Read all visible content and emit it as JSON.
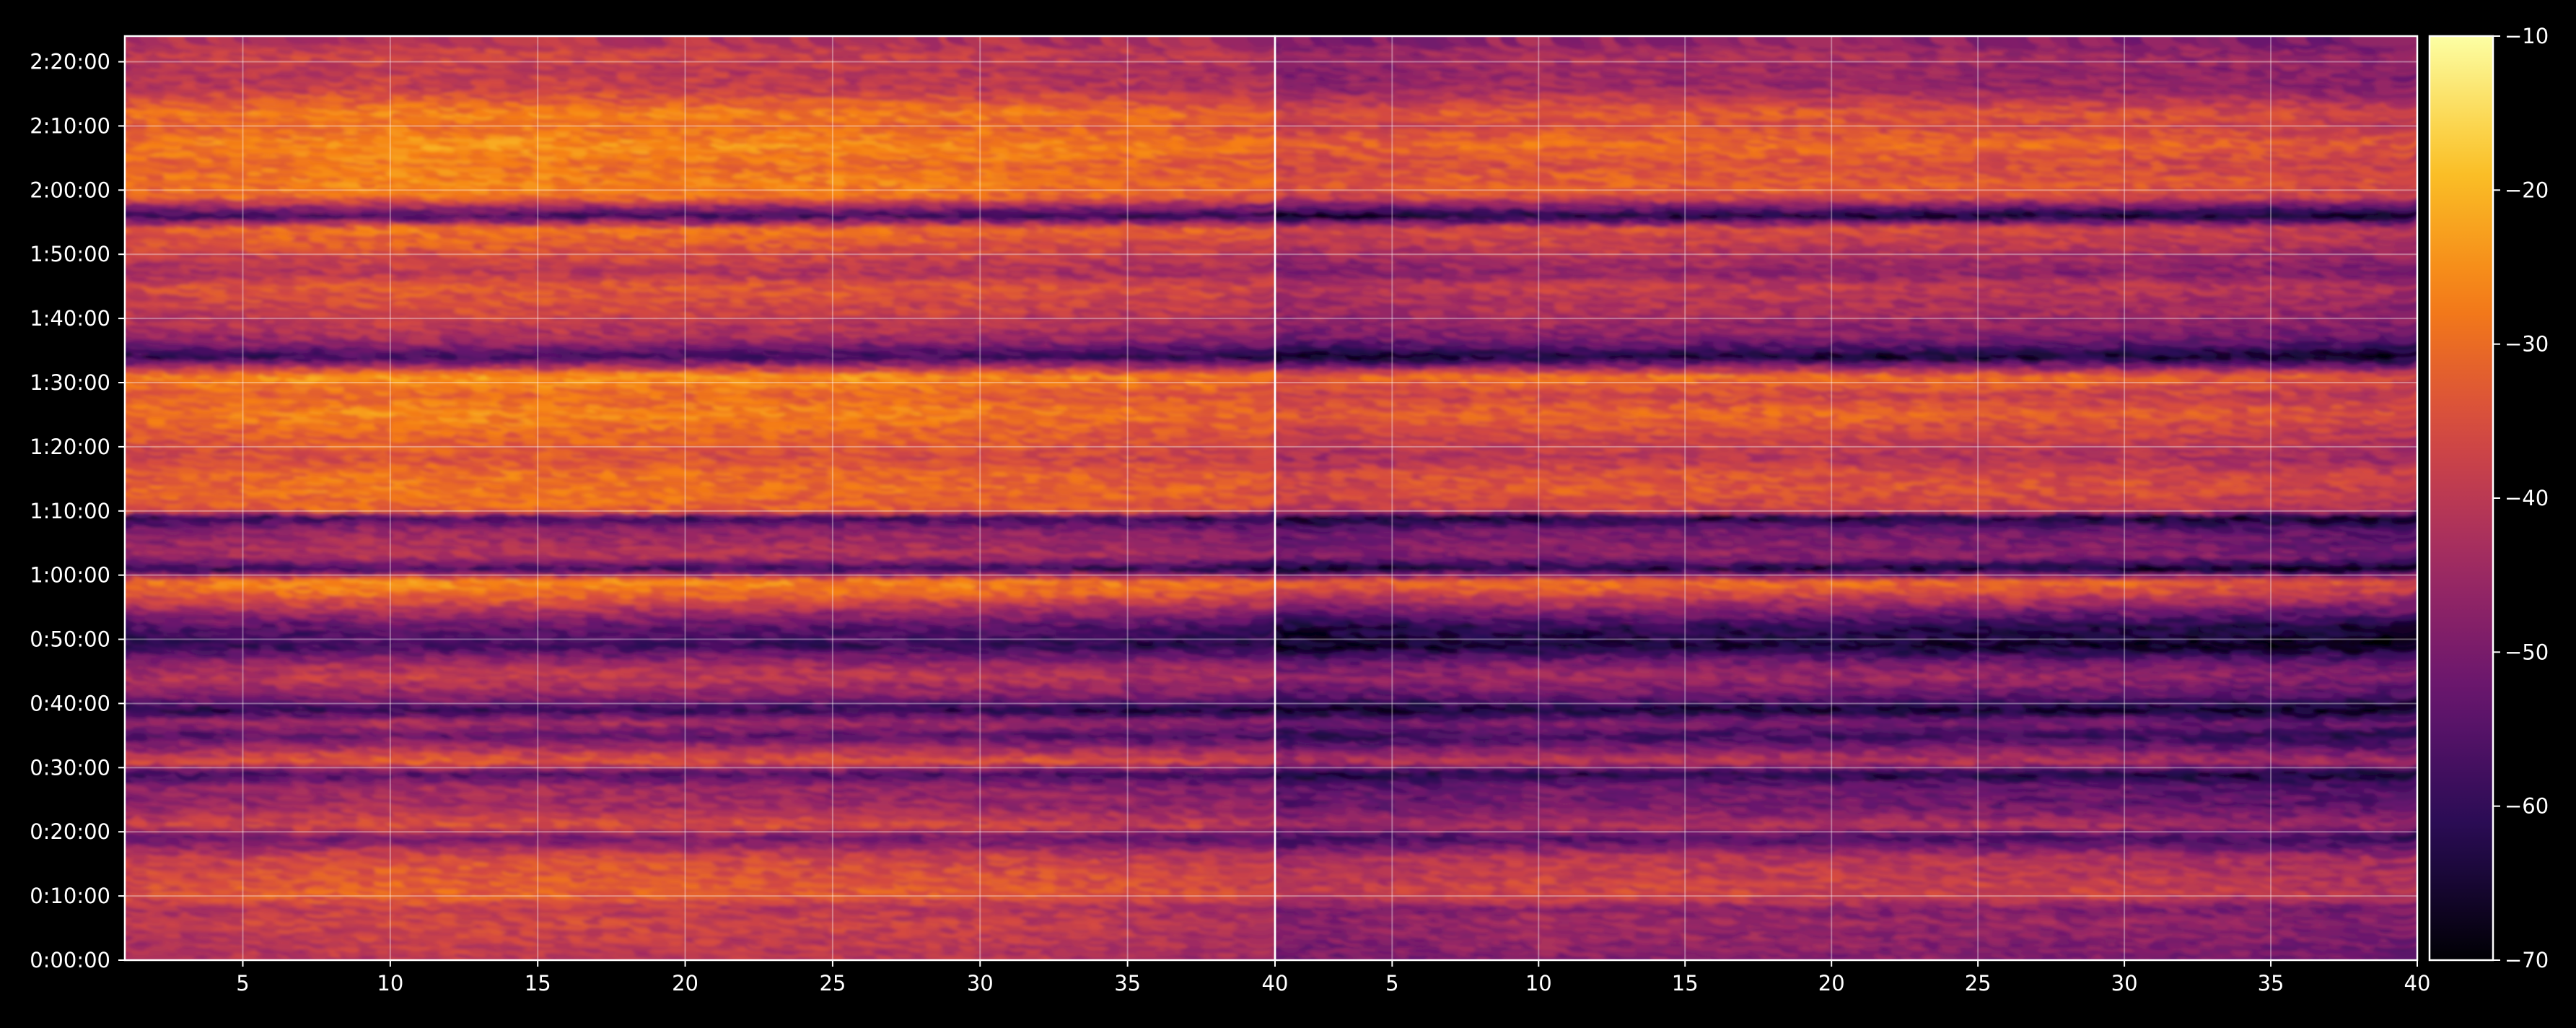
{
  "chart_data": {
    "type": "heatmap",
    "title": "",
    "xlabel": "",
    "ylabel": "",
    "grid": true,
    "colormap": "inferno",
    "background": "#000000",
    "foreground": "#ffffff",
    "panels": [
      {
        "name": "",
        "x_range": [
          1,
          40
        ],
        "x_ticks": [
          5,
          10,
          15,
          20,
          25,
          30,
          35
        ],
        "x_tick_labels": [
          "5",
          "10",
          "15",
          "20",
          "25",
          "30",
          "35"
        ],
        "x_end_label": "40"
      },
      {
        "name": "",
        "x_range": [
          1,
          40
        ],
        "x_ticks": [
          5,
          10,
          15,
          20,
          25,
          30,
          35,
          40
        ],
        "x_tick_labels": [
          "5",
          "10",
          "15",
          "20",
          "25",
          "30",
          "35",
          "40"
        ]
      }
    ],
    "y_range_seconds": [
      0,
      8640
    ],
    "y_ticks_seconds": [
      0,
      600,
      1200,
      1800,
      2400,
      3000,
      3600,
      4200,
      4800,
      5400,
      6000,
      6600,
      7200,
      7800,
      8400
    ],
    "y_tick_labels": [
      "0:00:00",
      "0:10:00",
      "0:20:00",
      "0:30:00",
      "0:40:00",
      "0:50:00",
      "1:00:00",
      "1:10:00",
      "1:20:00",
      "1:30:00",
      "1:40:00",
      "1:50:00",
      "2:00:00",
      "2:10:00",
      "2:20:00"
    ],
    "band_profile": {
      "description": "approximate row intensity (dB) by time",
      "time_seconds": [
        0,
        240,
        420,
        540,
        660,
        780,
        1020,
        1200,
        1320,
        1500,
        1680,
        1800,
        1920,
        2160,
        2280,
        2400,
        2520,
        2700,
        2820,
        3000,
        3180,
        3480,
        3600,
        3720,
        3840,
        4080,
        4200,
        4260,
        4440,
        4620,
        4740,
        4860,
        5040,
        5160,
        5340,
        5520,
        5700,
        5880,
        6000,
        6120,
        6360,
        6480,
        6660,
        6900,
        7020,
        7200,
        7320,
        7500,
        7680,
        7860,
        7980,
        8220,
        8400,
        8520,
        8640
      ],
      "panel_1_db": [
        -42,
        -40,
        -38,
        -41,
        -33,
        -34,
        -37,
        -52,
        -36,
        -45,
        -46,
        -58,
        -33,
        -55,
        -44,
        -62,
        -49,
        -40,
        -44,
        -60,
        -55,
        -32,
        -26,
        -60,
        -42,
        -47,
        -60,
        -33,
        -30,
        -31,
        -36,
        -34,
        -31,
        -27,
        -32,
        -25,
        -60,
        -44,
        -41,
        -38,
        -34,
        -42,
        -37,
        -30,
        -60,
        -30,
        -28,
        -30,
        -26,
        -31,
        -28,
        -40,
        -40,
        -38,
        -42
      ],
      "panel_2_db": [
        -50,
        -48,
        -46,
        -49,
        -38,
        -39,
        -42,
        -58,
        -43,
        -52,
        -53,
        -64,
        -41,
        -60,
        -50,
        -66,
        -55,
        -46,
        -50,
        -66,
        -62,
        -38,
        -30,
        -66,
        -48,
        -52,
        -66,
        -40,
        -35,
        -36,
        -42,
        -40,
        -36,
        -32,
        -38,
        -30,
        -66,
        -50,
        -47,
        -44,
        -40,
        -48,
        -43,
        -36,
        -66,
        -36,
        -33,
        -36,
        -31,
        -37,
        -34,
        -46,
        -46,
        -44,
        -48
      ]
    },
    "column_trend_db": {
      "x": [
        1,
        10,
        20,
        30,
        40
      ],
      "offset": [
        -2,
        2,
        1,
        0,
        -3
      ]
    },
    "colorbar": {
      "range": [
        -70,
        -10
      ],
      "ticks": [
        -10,
        -20,
        -30,
        -40,
        -50,
        -60,
        -70
      ],
      "tick_labels": [
        "−10",
        "−20",
        "−30",
        "−40",
        "−50",
        "−60",
        "−70"
      ]
    }
  }
}
